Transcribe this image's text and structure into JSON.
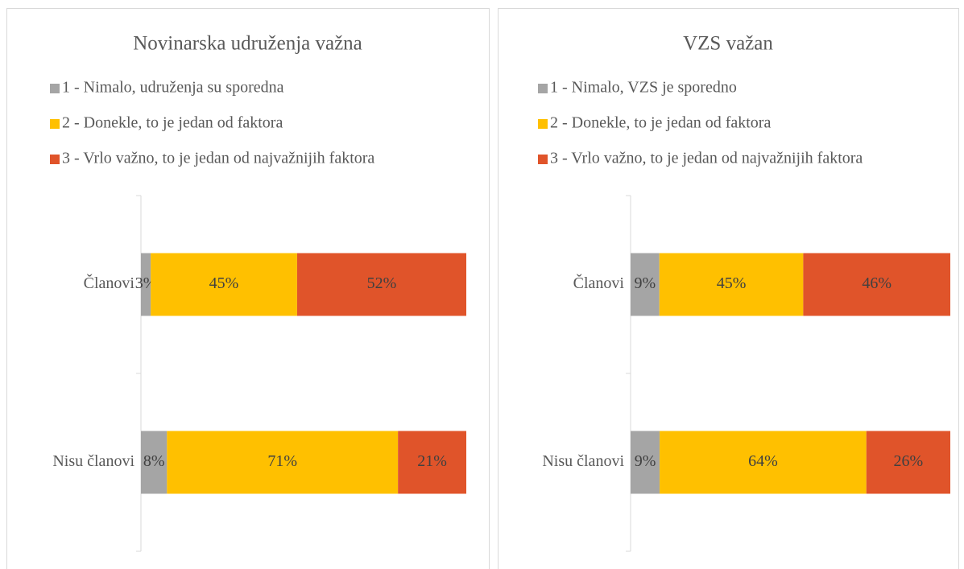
{
  "chart_data": [
    {
      "type": "bar",
      "title": "Novinarska udruženja važna",
      "categories": [
        "Članovi",
        "Nisu članovi"
      ],
      "series": [
        {
          "name": "1 - Nimalo, udruženja su sporedna",
          "color": "#a5a5a5",
          "values": [
            3,
            8
          ],
          "value_labels": [
            "3%",
            "8%"
          ]
        },
        {
          "name": "2 - Donekle, to je jedan od faktora",
          "color": "#ffc000",
          "values": [
            45,
            71
          ],
          "value_labels": [
            "45%",
            "71%"
          ]
        },
        {
          "name": "3 - Vrlo važno, to je jedan od najvažnijih faktora",
          "color": "#e0542a",
          "values": [
            52,
            21
          ],
          "value_labels": [
            "52%",
            "21%"
          ]
        }
      ]
    },
    {
      "type": "bar",
      "title": "VZS važan",
      "categories": [
        "Članovi",
        "Nisu članovi"
      ],
      "series": [
        {
          "name": "1 - Nimalo, VZS je sporedno",
          "color": "#a5a5a5",
          "values": [
            9,
            9
          ],
          "value_labels": [
            "9%",
            "9%"
          ]
        },
        {
          "name": "2 - Donekle, to je jedan od faktora",
          "color": "#ffc000",
          "values": [
            45,
            64
          ],
          "value_labels": [
            "45%",
            "64%"
          ]
        },
        {
          "name": "3 - Vrlo važno, to je jedan od najvažnijih faktora",
          "color": "#e0542a",
          "values": [
            46,
            26
          ],
          "value_labels": [
            "46%",
            "26%"
          ]
        }
      ]
    }
  ]
}
